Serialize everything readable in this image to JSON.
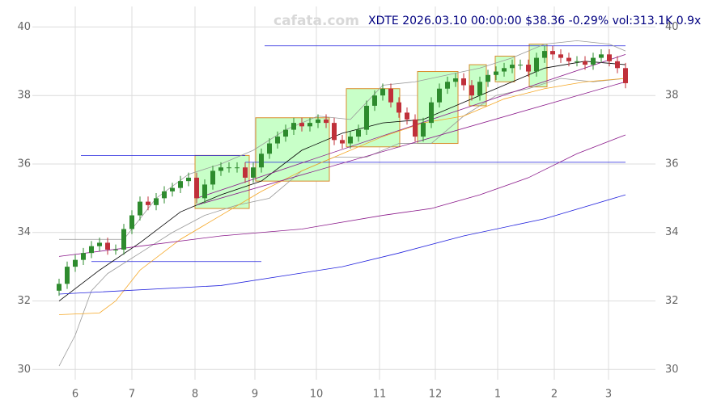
{
  "chart_data": {
    "type": "candlestick",
    "title": "XDTE 2026.03.10 00:00:00 $38.36 -0.29% vol:313.1K 0.9x",
    "watermark": "cafata.com",
    "open": [
      32.3,
      32.5,
      33.0,
      33.2,
      33.4,
      33.6,
      33.7,
      33.5,
      33.5,
      34.1,
      34.5,
      34.9,
      34.8,
      35.0,
      35.2,
      35.3,
      35.5,
      35.6,
      35.0,
      35.4,
      35.8,
      35.9,
      35.9,
      35.9,
      35.6,
      35.9,
      36.3,
      36.6,
      36.8,
      37.0,
      37.2,
      37.1,
      37.2,
      37.3,
      37.2,
      36.7,
      36.6,
      36.8,
      37.0,
      37.7,
      38.0,
      38.2,
      37.8,
      37.5,
      37.3,
      36.8,
      37.2,
      37.8,
      38.2,
      38.4,
      38.5,
      38.3,
      38.0,
      38.4,
      38.6,
      38.7,
      38.8,
      38.9,
      38.9,
      38.7,
      39.1,
      39.3,
      39.2,
      39.1,
      39.0,
      39.0,
      38.9,
      39.1,
      39.2,
      39.0,
      38.8
    ],
    "high": [
      32.65,
      33.15,
      33.35,
      33.55,
      33.75,
      33.85,
      33.85,
      33.65,
      34.25,
      34.65,
      35.05,
      35.05,
      35.15,
      35.35,
      35.45,
      35.65,
      35.75,
      35.75,
      35.55,
      35.95,
      36.05,
      36.05,
      36.05,
      36.05,
      36.05,
      36.45,
      36.75,
      36.95,
      37.15,
      37.35,
      37.35,
      37.35,
      37.45,
      37.45,
      37.35,
      36.85,
      36.95,
      37.15,
      37.85,
      38.15,
      38.35,
      38.35,
      37.95,
      37.65,
      37.45,
      37.35,
      37.95,
      38.35,
      38.55,
      38.65,
      38.65,
      38.45,
      38.55,
      38.75,
      38.85,
      38.95,
      39.05,
      39.05,
      39.05,
      39.25,
      39.45,
      39.45,
      39.35,
      39.25,
      39.15,
      39.15,
      39.25,
      39.35,
      39.35,
      39.15,
      38.95
    ],
    "low": [
      32.15,
      32.35,
      32.85,
      33.05,
      33.25,
      33.45,
      33.35,
      33.35,
      33.35,
      33.95,
      34.35,
      34.65,
      34.65,
      34.85,
      35.05,
      35.15,
      35.35,
      34.85,
      34.85,
      35.25,
      35.65,
      35.75,
      35.75,
      35.45,
      35.45,
      35.75,
      36.15,
      36.45,
      36.65,
      36.85,
      36.95,
      36.95,
      37.05,
      37.05,
      36.55,
      36.45,
      36.45,
      36.65,
      36.85,
      37.55,
      37.85,
      37.65,
      37.35,
      37.15,
      36.65,
      36.65,
      37.05,
      37.65,
      38.05,
      38.25,
      38.15,
      37.85,
      37.85,
      38.25,
      38.45,
      38.55,
      38.65,
      38.75,
      38.55,
      38.55,
      38.95,
      39.05,
      38.95,
      38.85,
      38.85,
      38.75,
      38.75,
      38.95,
      38.85,
      38.65,
      38.21
    ],
    "close": [
      32.5,
      33.0,
      33.2,
      33.4,
      33.6,
      33.7,
      33.5,
      33.5,
      34.1,
      34.5,
      34.9,
      34.8,
      35.0,
      35.2,
      35.3,
      35.5,
      35.6,
      35.0,
      35.4,
      35.8,
      35.9,
      35.9,
      35.9,
      35.6,
      35.9,
      36.3,
      36.6,
      36.8,
      37.0,
      37.2,
      37.1,
      37.2,
      37.3,
      37.2,
      36.7,
      36.6,
      36.8,
      37.0,
      37.7,
      38.0,
      38.2,
      37.8,
      37.5,
      37.3,
      36.8,
      37.2,
      37.8,
      38.2,
      38.4,
      38.5,
      38.3,
      38.0,
      38.4,
      38.6,
      38.7,
      38.8,
      38.9,
      38.9,
      38.7,
      39.1,
      39.3,
      39.2,
      39.1,
      39.0,
      39.0,
      38.9,
      39.1,
      39.2,
      39.0,
      38.8,
      38.36
    ],
    "up_color": "#2e8b2e",
    "down_color": "#c0303a",
    "overlays": [
      {
        "color": "#999999",
        "x": [
          0,
          4,
          8,
          12,
          16,
          20,
          24,
          28,
          32,
          36,
          40,
          44,
          48,
          52,
          56,
          60,
          64,
          68,
          70
        ],
        "values": [
          33.8,
          33.8,
          33.8,
          35.0,
          35.7,
          36.0,
          36.4,
          37.0,
          37.4,
          37.3,
          38.3,
          38.4,
          38.6,
          38.8,
          39.1,
          39.5,
          39.6,
          39.5,
          39.3
        ]
      },
      {
        "color": "#999999",
        "x": [
          0,
          2,
          4,
          6,
          8,
          10,
          14,
          18,
          22,
          26,
          30,
          34,
          38,
          42,
          46,
          50,
          54,
          58,
          62,
          66,
          70
        ],
        "values": [
          30.1,
          31.0,
          32.3,
          32.8,
          33.1,
          33.4,
          34.0,
          34.5,
          34.8,
          35.0,
          35.8,
          36.2,
          36.2,
          36.6,
          36.6,
          37.4,
          38.0,
          38.2,
          38.5,
          38.4,
          38.5
        ]
      },
      {
        "color": "#000000",
        "x": [
          0,
          5,
          10,
          15,
          20,
          25,
          30,
          35,
          40,
          45,
          50,
          55,
          60,
          65,
          70
        ],
        "values": [
          32.0,
          32.9,
          33.7,
          34.6,
          35.1,
          35.5,
          36.4,
          36.9,
          37.2,
          37.3,
          37.8,
          38.3,
          38.8,
          39.0,
          38.9
        ]
      },
      {
        "color": "#f5a623",
        "x": [
          0,
          5,
          7,
          10,
          15,
          20,
          25,
          30,
          35,
          40,
          45,
          50,
          55,
          60,
          65,
          70
        ],
        "values": [
          31.6,
          31.65,
          32.0,
          32.9,
          33.8,
          34.5,
          35.2,
          35.8,
          36.3,
          36.8,
          37.2,
          37.4,
          37.9,
          38.2,
          38.4,
          38.5
        ]
      },
      {
        "color": "#8b1a8b",
        "x": [
          0,
          10,
          20,
          30,
          40,
          46,
          52,
          58,
          64,
          70
        ],
        "values": [
          33.3,
          33.6,
          33.9,
          34.1,
          34.5,
          34.7,
          35.1,
          35.6,
          36.3,
          36.85
        ]
      },
      {
        "color": "#2222dd",
        "x": [
          0,
          20,
          35,
          42,
          50,
          60,
          70
        ],
        "values": [
          32.2,
          32.45,
          33.0,
          33.4,
          33.9,
          34.4,
          35.1
        ]
      },
      {
        "color": "#8b1a8b",
        "x": [
          17,
          70
        ],
        "values": [
          35.0,
          39.2
        ]
      },
      {
        "color": "#8b1a8b",
        "x": [
          17,
          70
        ],
        "values": [
          34.8,
          38.4
        ]
      }
    ],
    "levels": [
      {
        "color": "#2222dd",
        "value": 39.45,
        "x": [
          25.4,
          70
        ]
      },
      {
        "color": "#2222dd",
        "value": 36.25,
        "x": [
          2.7,
          23.0
        ]
      },
      {
        "color": "#2222dd",
        "value": 36.05,
        "x": [
          23.0,
          70
        ]
      },
      {
        "color": "#2222dd",
        "value": 33.15,
        "x": [
          4.0,
          25.0
        ]
      }
    ],
    "boxes": [
      {
        "x": [
          16.8,
          23.5
        ],
        "y": [
          34.7,
          36.25
        ]
      },
      {
        "x": [
          24.3,
          33.4
        ],
        "y": [
          35.5,
          37.35
        ]
      },
      {
        "x": [
          35.5,
          42.1
        ],
        "y": [
          36.5,
          38.2
        ]
      },
      {
        "x": [
          44.3,
          49.3
        ],
        "y": [
          36.6,
          38.7
        ]
      },
      {
        "x": [
          50.7,
          52.8
        ],
        "y": [
          37.7,
          38.9
        ]
      },
      {
        "x": [
          53.9,
          56.3
        ],
        "y": [
          38.4,
          39.15
        ]
      },
      {
        "x": [
          58.1,
          60.3
        ],
        "y": [
          38.25,
          39.5
        ]
      }
    ],
    "box_fill": "#c8ffc8",
    "box_stroke": "#d98c2b",
    "xlim": [
      -3.3,
      73.7
    ],
    "ylim": [
      29.7,
      40.6
    ],
    "xticks": [
      {
        "value": 2,
        "label": "6"
      },
      {
        "value": 9,
        "label": "7"
      },
      {
        "value": 16.8,
        "label": "8"
      },
      {
        "value": 24.2,
        "label": "9"
      },
      {
        "value": 31.8,
        "label": "10"
      },
      {
        "value": 39.6,
        "label": "11"
      },
      {
        "value": 46.5,
        "label": "12"
      },
      {
        "value": 54.2,
        "label": "1"
      },
      {
        "value": 61.2,
        "label": "2"
      },
      {
        "value": 67.9,
        "label": "3"
      }
    ],
    "yticks": [
      30,
      32,
      34,
      36,
      38,
      40
    ],
    "grid": true
  }
}
